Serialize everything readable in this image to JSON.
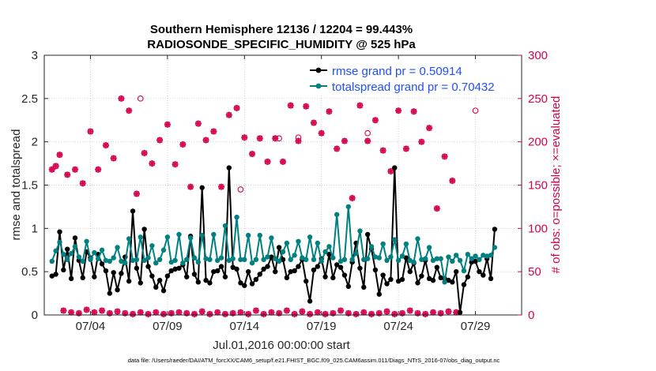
{
  "chart_data": {
    "type": "line",
    "title": [
      "Southern Hemisphere 12136 / 12204 = 99.443%",
      "RADIOSONDE_SPECIFIC_HUMIDITY @ 525 hPa"
    ],
    "xlabel": "Jul.01,2016 00:00:00 start",
    "ylabel_left": "rmse and totalspread",
    "ylabel_right": "# of obs: o=possible; ×=evaluated",
    "xlim": [
      1.0,
      32.0
    ],
    "ylim_left": [
      0,
      3
    ],
    "ylim_right": [
      0,
      300
    ],
    "x_ticks": [
      4,
      9,
      14,
      19,
      24,
      29
    ],
    "x_tick_labels": [
      "07/04",
      "07/09",
      "07/14",
      "07/19",
      "07/24",
      "07/29"
    ],
    "y_ticks_left": [
      0,
      0.5,
      1,
      1.5,
      2,
      2.5,
      3
    ],
    "y_tick_labels_left": [
      "0",
      "0.5",
      "1",
      "1.5",
      "2",
      "2.5",
      "3"
    ],
    "y_ticks_right": [
      0,
      50,
      100,
      150,
      200,
      250,
      300
    ],
    "y_tick_labels_right": [
      "0",
      "50",
      "100",
      "150",
      "200",
      "250",
      "300"
    ],
    "grid": true,
    "legend_location": "top-right",
    "x_start": 1.5,
    "x_step": 0.25,
    "series": [
      {
        "name": "rmse grand pr = 0.50914",
        "color": "#000000",
        "marker": "filled-circle",
        "values": [
          0.45,
          0.47,
          0.96,
          0.52,
          0.76,
          0.42,
          0.89,
          0.63,
          0.43,
          0.73,
          0.66,
          0.44,
          0.7,
          0.59,
          0.51,
          0.25,
          0.49,
          0.29,
          0.48,
          0.67,
          0.39,
          1.2,
          0.54,
          0.37,
          0.99,
          0.56,
          0.45,
          0.32,
          0.4,
          0.28,
          0.45,
          0.51,
          0.53,
          0.54,
          0.58,
          0.44,
          0.91,
          0.47,
          0.38,
          1.47,
          0.4,
          0.37,
          0.5,
          0.51,
          0.56,
          0.44,
          1.7,
          0.55,
          0.53,
          0.37,
          0.34,
          0.5,
          0.36,
          0.41,
          0.47,
          0.53,
          0.56,
          0.67,
          0.5,
          0.78,
          0.64,
          0.43,
          0.5,
          0.51,
          0.56,
          0.64,
          0.39,
          0.16,
          0.52,
          0.56,
          0.65,
          0.44,
          0.7,
          0.43,
          0.58,
          0.55,
          0.46,
          0.33,
          0.61,
          0.83,
          0.54,
          0.32,
          0.93,
          0.76,
          0.52,
          0.24,
          0.46,
          0.36,
          0.41,
          1.7,
          0.39,
          0.41,
          0.66,
          0.5,
          0.6,
          0.37,
          0.45,
          0.63,
          0.42,
          0.4,
          0.55,
          0.43,
          0.42,
          0.4,
          0.38,
          0.5,
          0.03,
          0.35,
          0.44,
          0.61,
          0.62,
          0.5,
          0.46,
          0.65,
          0.42,
          0.99
        ]
      },
      {
        "name": "totalspread grand pr = 0.70432",
        "color": "#008080",
        "marker": "filled-circle",
        "values": [
          0.62,
          0.74,
          0.84,
          0.7,
          0.64,
          0.71,
          0.79,
          0.67,
          0.62,
          0.85,
          0.64,
          0.72,
          0.65,
          0.75,
          0.63,
          0.62,
          0.66,
          0.78,
          0.62,
          0.6,
          0.88,
          0.63,
          0.64,
          0.9,
          0.63,
          0.66,
          0.8,
          0.6,
          0.64,
          0.75,
          0.9,
          0.61,
          0.63,
          0.93,
          0.6,
          0.64,
          0.89,
          0.66,
          0.61,
          0.92,
          0.65,
          0.64,
          0.93,
          0.63,
          0.66,
          1.03,
          0.63,
          0.65,
          1.13,
          0.64,
          0.64,
          0.92,
          0.6,
          0.64,
          0.92,
          0.64,
          0.67,
          0.89,
          0.65,
          0.62,
          0.73,
          0.83,
          0.64,
          0.69,
          0.85,
          0.66,
          0.64,
          0.9,
          0.64,
          0.83,
          0.62,
          0.73,
          0.79,
          0.66,
          1.16,
          0.62,
          0.64,
          1.25,
          0.64,
          0.71,
          0.97,
          0.64,
          0.65,
          0.79,
          0.67,
          0.66,
          0.82,
          0.63,
          0.67,
          0.87,
          0.63,
          0.68,
          0.82,
          0.63,
          0.61,
          0.88,
          0.64,
          0.65,
          0.78,
          0.63,
          0.65,
          0.65,
          0.38,
          0.67,
          0.62,
          0.69,
          0.63,
          0.51,
          0.7,
          0.65,
          0.68,
          0.64,
          0.69,
          0.68,
          0.69,
          0.78
        ]
      },
      {
        "name": "possible",
        "color": "#d6004f",
        "marker": "open-circle",
        "axis": "right",
        "values": [
          168,
          172,
          185,
          5,
          162,
          3,
          168,
          2,
          152,
          6,
          212,
          3,
          168,
          5,
          196,
          2,
          181,
          4,
          250,
          2,
          236,
          1,
          140,
          3,
          187,
          1,
          175,
          3,
          202,
          1,
          220,
          2,
          174,
          3,
          197,
          2,
          148,
          1,
          221,
          4,
          202,
          1,
          212,
          3,
          148,
          1,
          231,
          2,
          239,
          3,
          205,
          1,
          186,
          5,
          204,
          1,
          177,
          3,
          204,
          2,
          177,
          5,
          242,
          1,
          201,
          4,
          241,
          1,
          222,
          3,
          210,
          1,
          235,
          2,
          192,
          5,
          201,
          2,
          135,
          1,
          242,
          3,
          201,
          1,
          225,
          2,
          190,
          4,
          166,
          1,
          236,
          2,
          192,
          5,
          235,
          2,
          200,
          1,
          216,
          3,
          123,
          2,
          183,
          4,
          155,
          3
        ],
        "hidden_values": [
          {
            "x": 7.25,
            "value": 250
          },
          {
            "x": 13.75,
            "value": 145
          },
          {
            "x": 16.25,
            "value": 204
          },
          {
            "x": 17.5,
            "value": 205
          },
          {
            "x": 22.0,
            "value": 210
          },
          {
            "x": 29.0,
            "value": 236
          }
        ]
      },
      {
        "name": "evaluated",
        "color": "#d6004f",
        "marker": "star",
        "axis": "right",
        "values": [
          168,
          172,
          185,
          5,
          162,
          3,
          168,
          2,
          152,
          6,
          212,
          3,
          168,
          5,
          196,
          2,
          181,
          4,
          250,
          2,
          236,
          1,
          140,
          3,
          187,
          1,
          175,
          3,
          202,
          1,
          220,
          2,
          174,
          3,
          197,
          2,
          148,
          1,
          221,
          4,
          202,
          1,
          212,
          3,
          148,
          1,
          231,
          2,
          239,
          3,
          205,
          1,
          186,
          5,
          204,
          1,
          177,
          3,
          204,
          2,
          177,
          5,
          242,
          1,
          201,
          4,
          241,
          1,
          222,
          3,
          210,
          1,
          235,
          2,
          192,
          5,
          201,
          2,
          135,
          1,
          242,
          3,
          201,
          1,
          225,
          2,
          190,
          4,
          166,
          1,
          236,
          2,
          192,
          5,
          235,
          2,
          200,
          1,
          216,
          3,
          123,
          2,
          183,
          4,
          155,
          3
        ]
      }
    ],
    "footer": "data file: /Users/raeder/DAI/ATM_forcXX/CAM6_setup/f.e21.FHIST_BGC.f09_025.CAM6assim.011/Diags_NTrS_2016-07/obs_diag_output.nc"
  }
}
